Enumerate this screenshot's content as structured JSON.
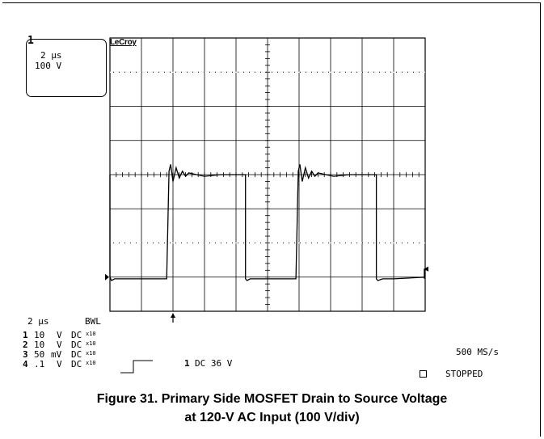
{
  "chart_data": {
    "type": "line",
    "title": "",
    "xlabel": "",
    "ylabel": "",
    "xlim": [
      0,
      20
    ],
    "ylim": [
      -400,
      400
    ],
    "grid": true,
    "x_divisions": 10,
    "y_divisions": 8,
    "series": [
      {
        "x": [
          0.0,
          0.0,
          0.1,
          0.3,
          3.6,
          3.75,
          3.85,
          4.0,
          4.2,
          4.4,
          4.6,
          4.8,
          5.0,
          5.5,
          6.0,
          7.0,
          8.0,
          8.6,
          8.6,
          8.7,
          8.9,
          9.3,
          11.8,
          11.95,
          12.05,
          12.2,
          12.4,
          12.6,
          12.8,
          13.0,
          13.2,
          13.7,
          14.2,
          15.2,
          16.2,
          16.9,
          16.9,
          17.0,
          17.3,
          18.0,
          20.0
        ],
        "y": [
          0,
          -300,
          -310,
          -305,
          -305,
          10,
          30,
          -20,
          20,
          -10,
          10,
          -5,
          5,
          0,
          -5,
          0,
          0,
          0,
          -305,
          -310,
          -305,
          -305,
          -305,
          10,
          30,
          -20,
          20,
          -10,
          10,
          -5,
          5,
          0,
          -5,
          0,
          0,
          0,
          -305,
          -310,
          -305,
          -305,
          -300
        ]
      }
    ]
  },
  "settings_box": {
    "channel_marker": "1",
    "timebase": "2 μs",
    "volts_per_div": "100 V"
  },
  "brand": "LeCroy",
  "footer": {
    "timebase": "2 μs",
    "bwl": "BWL",
    "channels": [
      {
        "num": "1",
        "value": "10",
        "unit": "V",
        "coupling": "DC",
        "probe": "x10"
      },
      {
        "num": "2",
        "value": "10",
        "unit": "V",
        "coupling": "DC",
        "probe": "x10"
      },
      {
        "num": "3",
        "value": "50",
        "unit": "mV",
        "coupling": "DC",
        "probe": "x10"
      },
      {
        "num": "4",
        "value": ".1",
        "unit": "V",
        "coupling": "DC",
        "probe": "x10"
      }
    ],
    "trigger_channel": "1",
    "trigger_setting": "DC 36 V",
    "sample_rate": "500 MS/s",
    "status": "STOPPED"
  },
  "caption": {
    "line1": "Figure 31. Primary Side MOSFET Drain to Source Voltage",
    "line2": "at 120-V AC Input (100 V/div)"
  }
}
